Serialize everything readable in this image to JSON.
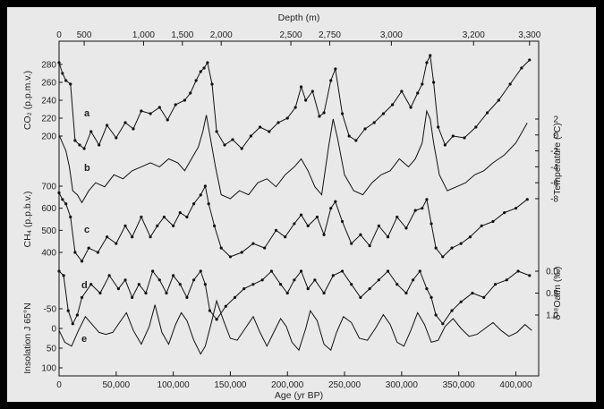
{
  "chart_data": {
    "type": "line",
    "x_label": "Age (yr BP)",
    "x_ticks": [
      0,
      50000,
      100000,
      150000,
      200000,
      250000,
      300000,
      350000,
      400000
    ],
    "x_tick_labels": [
      "0",
      "50,000",
      "100,000",
      "150,000",
      "200,000",
      "250,000",
      "300,000",
      "350,000",
      "400,000"
    ],
    "x_range": [
      0,
      420000
    ],
    "top_axis": {
      "label": "Depth (m)",
      "ticks": [
        {
          "depth": 0,
          "age": 0,
          "label": "0"
        },
        {
          "depth": 500,
          "age": 22000,
          "label": "500"
        },
        {
          "depth": 1000,
          "age": 74000,
          "label": "1,000"
        },
        {
          "depth": 1500,
          "age": 108000,
          "label": "1,500"
        },
        {
          "depth": 2000,
          "age": 142000,
          "label": "2,000"
        },
        {
          "depth": 2500,
          "age": 203000,
          "label": "2,500"
        },
        {
          "depth": 2750,
          "age": 237000,
          "label": "2,750"
        },
        {
          "depth": 3000,
          "age": 291000,
          "label": "3,000"
        },
        {
          "depth": 3200,
          "age": 363000,
          "label": "3,200"
        },
        {
          "depth": 3300,
          "age": 412000,
          "label": "3,300"
        }
      ]
    },
    "series": [
      {
        "panel": "a",
        "label": "CO₂ (p.p.m.v.)",
        "side": "left",
        "ticks": [
          200,
          220,
          240,
          260,
          280
        ],
        "color": "#111111",
        "markers": true,
        "x": [
          0,
          3000,
          6000,
          10000,
          14000,
          18000,
          22000,
          28000,
          35000,
          42000,
          50000,
          58000,
          65000,
          72000,
          80000,
          88000,
          95000,
          102000,
          110000,
          115000,
          120000,
          124000,
          127000,
          130000,
          134000,
          138000,
          145000,
          152000,
          160000,
          168000,
          176000,
          184000,
          192000,
          200000,
          207000,
          212000,
          216000,
          222000,
          228000,
          232000,
          238000,
          242000,
          248000,
          254000,
          260000,
          268000,
          276000,
          284000,
          292000,
          300000,
          308000,
          314000,
          318000,
          322000,
          325000,
          328000,
          332000,
          338000,
          345000,
          355000,
          365000,
          375000,
          385000,
          395000,
          405000,
          412000
        ],
        "y": [
          282,
          270,
          262,
          258,
          195,
          190,
          186,
          205,
          190,
          212,
          198,
          215,
          208,
          228,
          225,
          232,
          218,
          235,
          240,
          248,
          262,
          272,
          276,
          282,
          258,
          205,
          190,
          196,
          186,
          200,
          210,
          205,
          215,
          220,
          232,
          255,
          240,
          250,
          222,
          226,
          262,
          275,
          225,
          200,
          195,
          208,
          215,
          225,
          235,
          250,
          232,
          248,
          258,
          282,
          290,
          260,
          210,
          190,
          200,
          198,
          210,
          226,
          240,
          258,
          276,
          285
        ]
      },
      {
        "panel": "b",
        "label": "Temperature (°C)",
        "side": "right",
        "ticks": [
          -8,
          -6,
          -4,
          -2,
          0,
          2
        ],
        "color": "#111111",
        "markers": false,
        "x": [
          0,
          3000,
          6000,
          9000,
          12000,
          16000,
          20000,
          26000,
          32000,
          40000,
          48000,
          56000,
          64000,
          72000,
          80000,
          88000,
          96000,
          104000,
          110000,
          116000,
          122000,
          126000,
          129000,
          132000,
          137000,
          142000,
          150000,
          158000,
          166000,
          174000,
          182000,
          190000,
          198000,
          206000,
          212000,
          218000,
          224000,
          230000,
          236000,
          240000,
          244000,
          250000,
          258000,
          266000,
          274000,
          282000,
          290000,
          298000,
          306000,
          312000,
          318000,
          322000,
          325000,
          328000,
          333000,
          340000,
          348000,
          356000,
          364000,
          372000,
          380000,
          390000,
          400000,
          410000
        ],
        "y": [
          0,
          -1,
          -2,
          -4,
          -7,
          -7.5,
          -8.5,
          -7,
          -6,
          -6.5,
          -5,
          -5.5,
          -4.5,
          -4,
          -3.5,
          -4,
          -3,
          -3.5,
          -4.5,
          -3,
          -1.5,
          0.5,
          2.5,
          0,
          -4,
          -7.5,
          -8,
          -7,
          -7.5,
          -6,
          -5.5,
          -6.5,
          -5,
          -4,
          -3,
          -4.5,
          -6.5,
          -7.5,
          -1.5,
          2,
          -0.5,
          -5,
          -7,
          -7.5,
          -6,
          -5,
          -4.5,
          -3,
          -4,
          -3,
          -1,
          3,
          2,
          -1,
          -5,
          -7,
          -6.5,
          -6,
          -5,
          -4.5,
          -3.5,
          -2.5,
          -1,
          1.5
        ]
      },
      {
        "panel": "c",
        "label": "CH₄ (p.p.b.v.)",
        "side": "left",
        "ticks": [
          400,
          500,
          600,
          700
        ],
        "color": "#111111",
        "markers": true,
        "x": [
          0,
          3000,
          6000,
          10000,
          14000,
          20000,
          26000,
          34000,
          42000,
          50000,
          58000,
          64000,
          72000,
          80000,
          86000,
          92000,
          100000,
          106000,
          112000,
          118000,
          124000,
          128000,
          131000,
          136000,
          142000,
          150000,
          160000,
          170000,
          180000,
          190000,
          198000,
          206000,
          212000,
          218000,
          226000,
          232000,
          238000,
          242000,
          248000,
          256000,
          264000,
          272000,
          280000,
          288000,
          296000,
          304000,
          312000,
          318000,
          322000,
          326000,
          330000,
          336000,
          344000,
          352000,
          360000,
          370000,
          380000,
          390000,
          400000,
          410000
        ],
        "y": [
          670,
          640,
          620,
          560,
          400,
          360,
          420,
          400,
          470,
          440,
          520,
          470,
          560,
          470,
          520,
          560,
          520,
          580,
          560,
          620,
          660,
          700,
          620,
          520,
          420,
          380,
          400,
          440,
          420,
          500,
          470,
          530,
          570,
          520,
          560,
          480,
          600,
          630,
          540,
          440,
          480,
          430,
          520,
          470,
          560,
          510,
          590,
          600,
          640,
          530,
          420,
          380,
          420,
          440,
          470,
          520,
          540,
          580,
          600,
          640
        ]
      },
      {
        "panel": "d",
        "label": "δ¹⁸Oatm (‰)",
        "side": "right",
        "ticks": [
          0.0,
          0.5,
          1.0
        ],
        "reversed": true,
        "color": "#111111",
        "markers": true,
        "x": [
          0,
          4000,
          8000,
          12000,
          16000,
          20000,
          28000,
          36000,
          44000,
          52000,
          58000,
          64000,
          70000,
          76000,
          82000,
          88000,
          94000,
          100000,
          106000,
          112000,
          118000,
          124000,
          128000,
          132000,
          138000,
          146000,
          154000,
          162000,
          170000,
          178000,
          186000,
          194000,
          200000,
          206000,
          212000,
          218000,
          224000,
          232000,
          240000,
          248000,
          256000,
          264000,
          272000,
          280000,
          288000,
          296000,
          304000,
          310000,
          316000,
          322000,
          326000,
          330000,
          336000,
          344000,
          352000,
          362000,
          372000,
          382000,
          392000,
          402000,
          412000
        ],
        "y": [
          0.0,
          0.1,
          0.9,
          1.2,
          1.0,
          0.6,
          0.3,
          0.5,
          0.1,
          0.4,
          0.2,
          0.6,
          0.3,
          0.5,
          0.0,
          0.2,
          0.5,
          0.1,
          0.3,
          0.6,
          0.2,
          0.0,
          0.3,
          0.9,
          1.1,
          0.8,
          0.6,
          0.4,
          0.3,
          0.2,
          0.0,
          0.3,
          0.5,
          0.2,
          0.0,
          0.4,
          0.2,
          0.5,
          0.1,
          0.0,
          0.3,
          0.6,
          0.4,
          0.2,
          0.0,
          0.3,
          0.5,
          0.2,
          0.0,
          0.4,
          0.6,
          1.0,
          1.2,
          0.9,
          0.7,
          0.5,
          0.6,
          0.3,
          0.2,
          0.0,
          0.1
        ]
      },
      {
        "panel": "e",
        "label": "Insolation J 65°N",
        "side": "left",
        "ticks": [
          -50,
          0,
          50,
          100
        ],
        "color": "#111111",
        "markers": false,
        "x": [
          0,
          5000,
          11000,
          17000,
          23000,
          29000,
          35000,
          41000,
          47000,
          53000,
          59000,
          65000,
          72000,
          79000,
          84000,
          90000,
          96000,
          102000,
          107000,
          112000,
          118000,
          124000,
          128000,
          133000,
          138000,
          144000,
          150000,
          156000,
          163000,
          170000,
          176000,
          182000,
          188000,
          194000,
          199000,
          204000,
          210000,
          216000,
          220000,
          226000,
          232000,
          238000,
          243000,
          249000,
          256000,
          263000,
          270000,
          277000,
          284000,
          290000,
          296000,
          302000,
          308000,
          314000,
          320000,
          326000,
          332000,
          338000,
          345000,
          352000,
          359000,
          366000,
          373000,
          380000,
          387000,
          394000,
          401000,
          408000,
          414000
        ],
        "y": [
          5,
          35,
          45,
          5,
          -30,
          -10,
          10,
          15,
          10,
          -15,
          -40,
          5,
          40,
          -5,
          -60,
          10,
          40,
          -10,
          -40,
          -20,
          30,
          65,
          45,
          -10,
          -70,
          -20,
          25,
          30,
          0,
          -30,
          10,
          45,
          10,
          -25,
          -5,
          35,
          55,
          0,
          -45,
          -20,
          40,
          55,
          10,
          -30,
          -15,
          25,
          30,
          0,
          -35,
          -10,
          35,
          45,
          5,
          -40,
          -10,
          35,
          30,
          -5,
          -25,
          0,
          20,
          15,
          0,
          -15,
          5,
          20,
          10,
          -10,
          5
        ]
      }
    ]
  }
}
